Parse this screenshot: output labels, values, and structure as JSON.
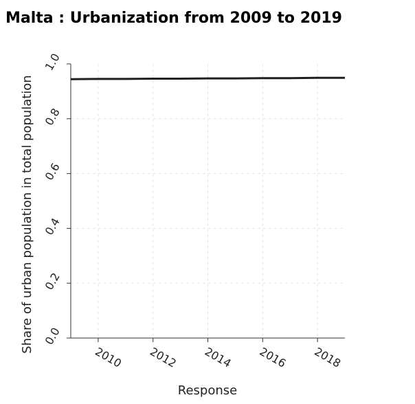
{
  "chart_data": {
    "type": "line",
    "title": "Malta : Urbanization from 2009 to 2019",
    "xlabel": "Response",
    "ylabel": "Share of urban population in total population",
    "xlim": [
      2009,
      2019
    ],
    "ylim": [
      0.0,
      1.0
    ],
    "x_ticks": [
      2010,
      2012,
      2014,
      2016,
      2018
    ],
    "y_ticks": [
      "0.0",
      "0.2",
      "0.4",
      "0.6",
      "0.8",
      "1.0"
    ],
    "grid": true,
    "series": [
      {
        "x": [
          2009,
          2010,
          2011,
          2012,
          2013,
          2014,
          2015,
          2016,
          2017,
          2018,
          2019
        ],
        "values": [
          0.944,
          0.945,
          0.945,
          0.946,
          0.946,
          0.947,
          0.947,
          0.948,
          0.948,
          0.949,
          0.949
        ],
        "color": "#1f1f1f"
      }
    ]
  }
}
